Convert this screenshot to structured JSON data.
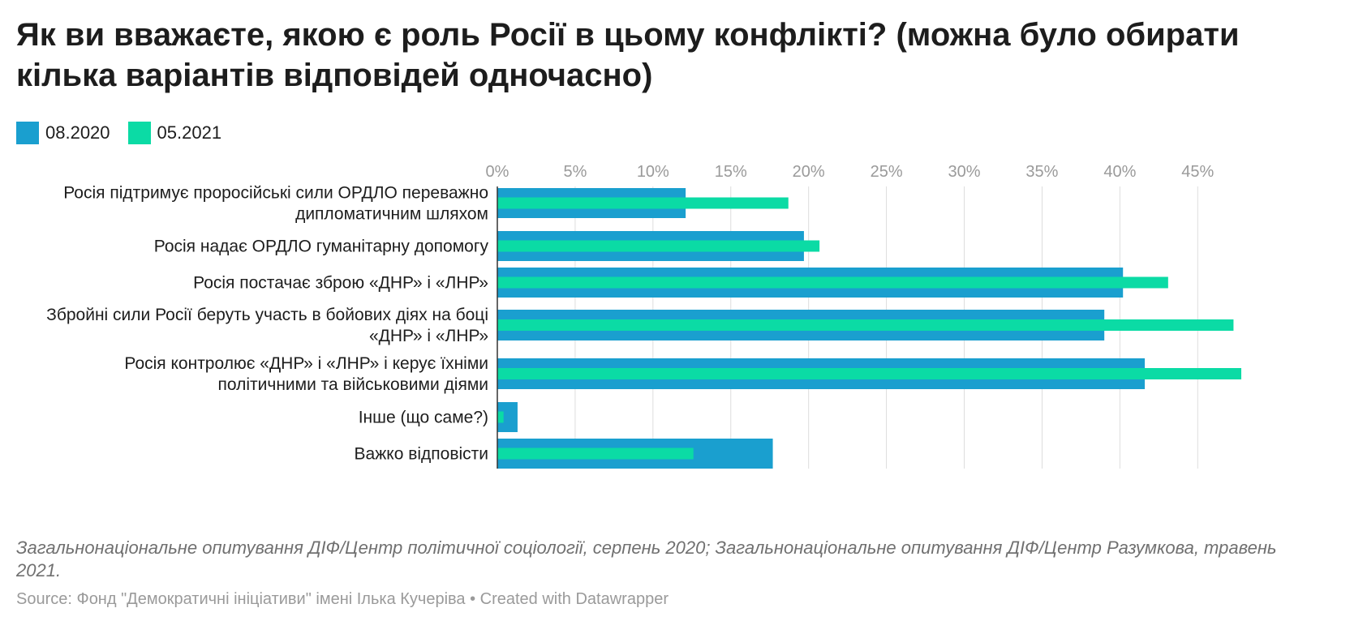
{
  "title": "Як ви вважаєте, якою є роль Росії в цьому конфлікті? (можна було обирати кілька варіантів відповідей одночасно)",
  "colors": {
    "series_2020": "#1a9fcf",
    "series_2021": "#0bdba5",
    "grid": "#dddddd",
    "tick": "#9a9a9a"
  },
  "chart_data": {
    "type": "bar",
    "orientation": "horizontal",
    "title": "Як ви вважаєте, якою є роль Росії в цьому конфлікті? (можна було обирати кілька варіантів відповідей одночасно)",
    "categories": [
      [
        "Росія підтримує проросійські сили ОРДЛО переважно",
        "дипломатичним шляхом"
      ],
      [
        "Росія надає ОРДЛО гуманітарну допомогу"
      ],
      [
        "Росія постачає зброю «ДНР» і «ЛНР»"
      ],
      [
        "Збройні сили Росії беруть участь в бойових діях на боці",
        "«ДНР» і «ЛНР»"
      ],
      [
        "Росія контролює «ДНР» і «ЛНР» і керує їхніми",
        "політичними та військовими діями"
      ],
      [
        "Інше (що саме?)"
      ],
      [
        "Важко відповісти"
      ]
    ],
    "series": [
      {
        "name": "08.2020",
        "values": [
          12.1,
          19.7,
          40.2,
          39.0,
          41.6,
          1.3,
          17.7
        ]
      },
      {
        "name": "05.2021",
        "values": [
          18.7,
          20.7,
          43.1,
          47.3,
          47.8,
          0.4,
          12.6
        ]
      }
    ],
    "xlim": [
      0,
      47.8
    ],
    "xticks": [
      0,
      5,
      10,
      15,
      20,
      25,
      30,
      35,
      40,
      45
    ],
    "tick_suffix": "%",
    "grid": true,
    "legend_position": "top-left"
  },
  "notes": "Загальнонаціональне опитування ДІФ/Центр політичної соціології, серпень 2020; Загальнонаціональне опитування ДІФ/Центр Разумкова, травень 2021.",
  "footer": "Source: Фонд \"Демократичні ініціативи\" імені Ілька Кучеріва • Created with Datawrapper"
}
